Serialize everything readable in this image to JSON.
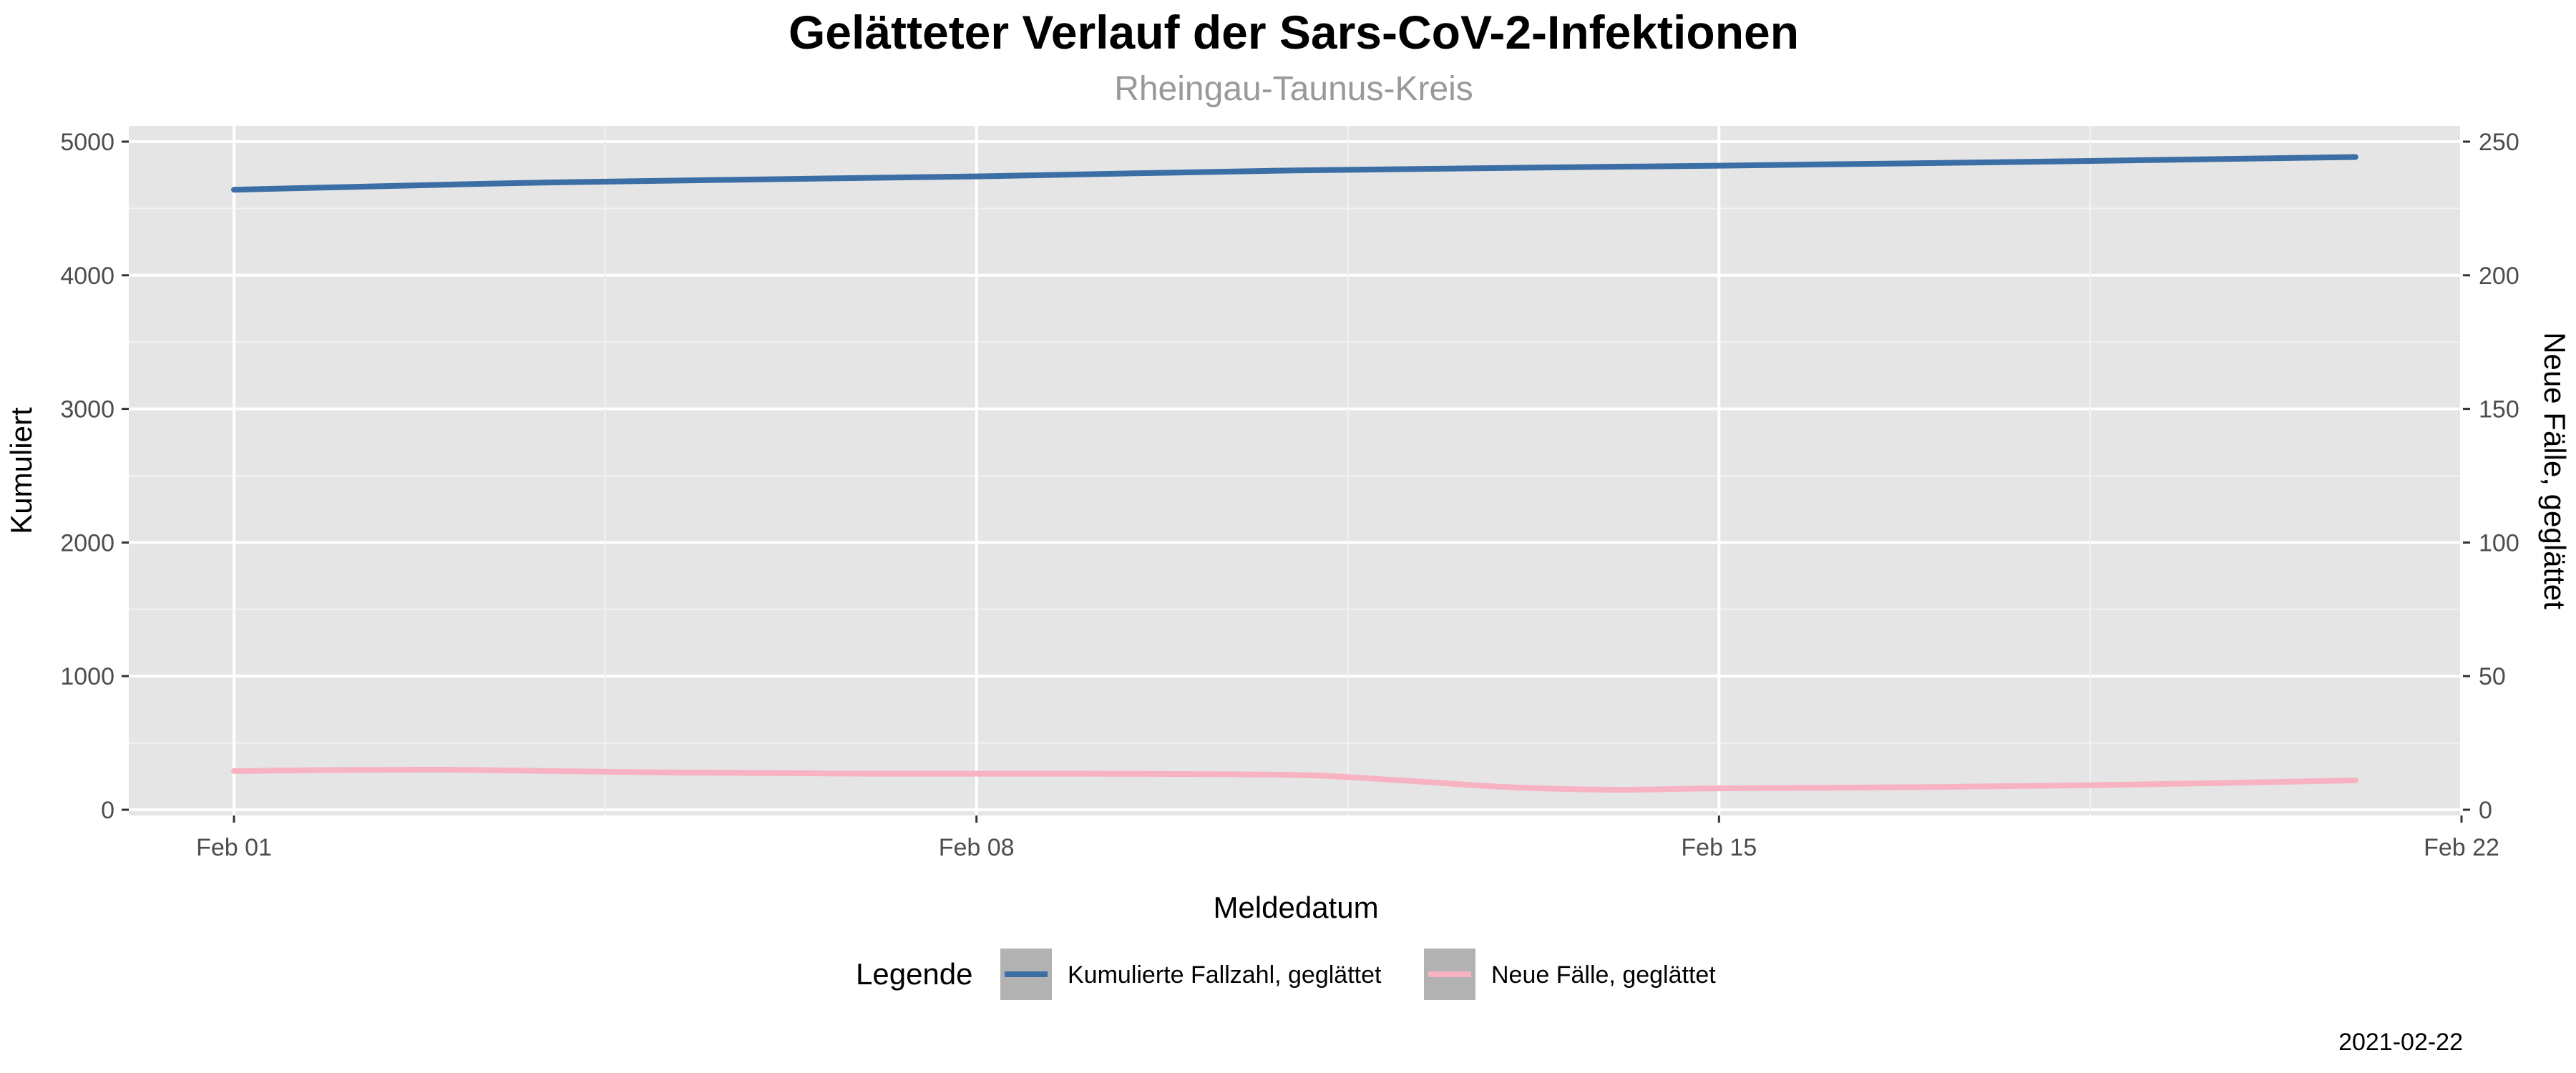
{
  "chart_data": {
    "type": "line",
    "title": "Gelätteter Verlauf der Sars-CoV-2-Infektionen",
    "subtitle": "Rheingau-Taunus-Kreis",
    "xlabel": "Meldedatum",
    "ylabel": "Kumuliert",
    "ylabel_right": "Neue Fälle, geglättet",
    "caption": "2021-02-22",
    "x_range": [
      "2021-02-01",
      "2021-02-22"
    ],
    "x_ticks": [
      "2021-02-01",
      "2021-02-08",
      "2021-02-15",
      "2021-02-22"
    ],
    "x_tick_labels": [
      "Feb 01",
      "Feb 08",
      "Feb 15",
      "Feb 22"
    ],
    "ylim": [
      0,
      5000
    ],
    "y_ticks": [
      0,
      1000,
      2000,
      3000,
      4000,
      5000
    ],
    "y_tick_labels": [
      "0",
      "1000",
      "2000",
      "3000",
      "4000",
      "5000"
    ],
    "ylim_right": [
      0,
      250
    ],
    "y_ticks_right": [
      0,
      50,
      100,
      150,
      200,
      250
    ],
    "y_tick_labels_right": [
      "0",
      "50",
      "100",
      "150",
      "200",
      "250"
    ],
    "grid": true,
    "legend": {
      "title": "Legende",
      "position": "bottom"
    },
    "series": [
      {
        "name": "Kumulierte Fallzahl, geglättet",
        "axis": "left",
        "color": "#3b6ea5",
        "x": [
          "2021-02-01",
          "2021-02-04",
          "2021-02-08",
          "2021-02-11",
          "2021-02-15",
          "2021-02-18",
          "2021-02-21"
        ],
        "values": [
          4640,
          4695,
          4740,
          4785,
          4820,
          4850,
          4885
        ]
      },
      {
        "name": "Neue Fälle, geglättet",
        "axis": "right",
        "color": "#f7b3c2",
        "x": [
          "2021-02-01",
          "2021-02-03",
          "2021-02-05",
          "2021-02-07",
          "2021-02-09",
          "2021-02-11",
          "2021-02-12",
          "2021-02-13",
          "2021-02-14",
          "2021-02-15",
          "2021-02-17",
          "2021-02-19",
          "2021-02-21"
        ],
        "values": [
          14.5,
          15,
          14,
          13.5,
          13.5,
          13,
          11,
          8.5,
          7.5,
          8,
          8.5,
          9.5,
          11
        ]
      }
    ]
  }
}
